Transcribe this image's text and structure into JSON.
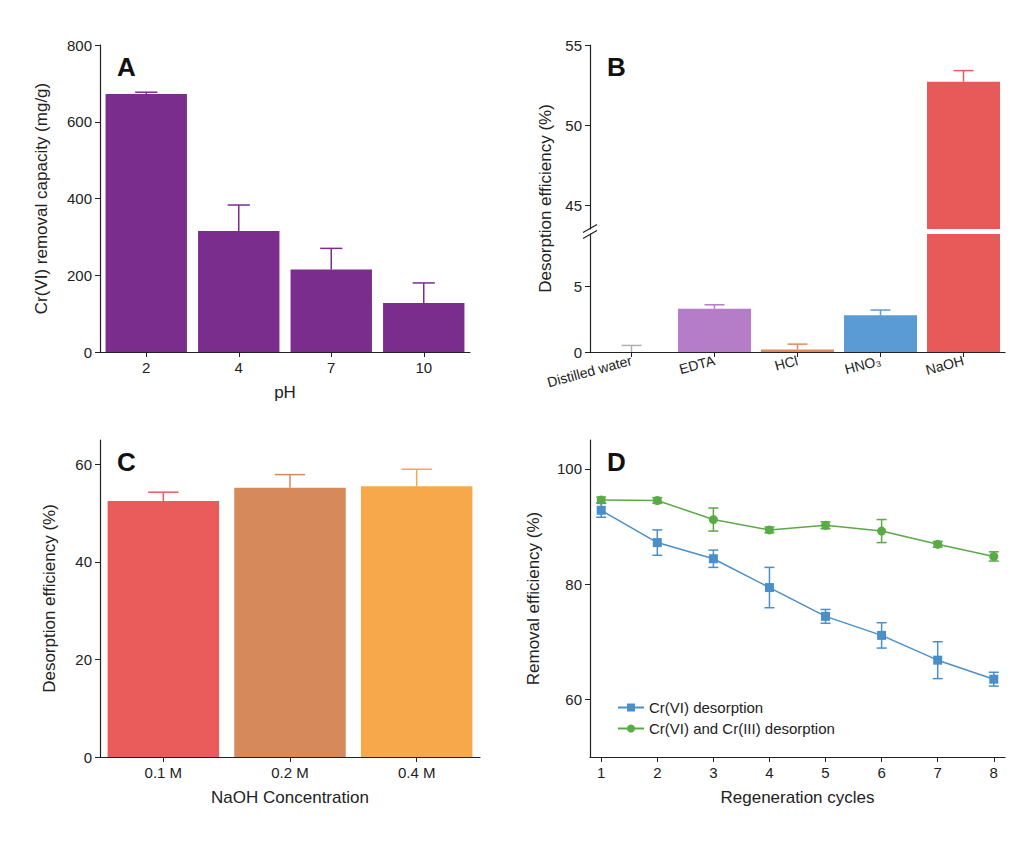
{
  "chart_data": [
    {
      "type": "bar",
      "panel": "A",
      "categories": [
        "2",
        "4",
        "7",
        "10"
      ],
      "values": [
        672,
        315,
        215,
        128
      ],
      "errors": [
        5,
        68,
        55,
        52
      ],
      "color": "#7b2d8e",
      "xlabel": "pH",
      "ylabel": "Cr(VI) removal capacity (mg/g)",
      "ylim": [
        0,
        800
      ],
      "yticks": [
        0,
        200,
        400,
        600,
        800
      ],
      "grid": false
    },
    {
      "type": "bar",
      "panel": "B",
      "categories": [
        "Distilled water",
        "EDTA",
        "HCl",
        "HNO₃",
        "NaOH"
      ],
      "values": [
        0,
        3.3,
        0.2,
        2.8,
        52.7
      ],
      "errors": [
        0.5,
        0.3,
        0.4,
        0.4,
        0.7
      ],
      "colors": [
        "#b0b0b0",
        "#b57cc8",
        "#e08a5c",
        "#5b9bd5",
        "#e85a5a"
      ],
      "ylabel": "Desorption efficiency (%)",
      "ylim": [
        0,
        55
      ],
      "ybreak": [
        9,
        43.5
      ],
      "yticks": [
        0,
        5,
        45,
        50,
        55
      ],
      "grid": false
    },
    {
      "type": "bar",
      "panel": "C",
      "categories": [
        "0.1 M",
        "0.2 M",
        "0.4 M"
      ],
      "values": [
        52.5,
        55.2,
        55.5
      ],
      "errors": [
        1.8,
        2.7,
        3.5
      ],
      "colors": [
        "#ea5b5b",
        "#d6895a",
        "#f7a84a"
      ],
      "xlabel": "NaOH Concentration",
      "ylabel": "Desorption efficiency (%)",
      "ylim": [
        0,
        65
      ],
      "yticks": [
        0,
        20,
        40,
        60
      ],
      "grid": false
    },
    {
      "type": "line",
      "panel": "D",
      "x": [
        1,
        2,
        3,
        4,
        5,
        6,
        7,
        8
      ],
      "series": [
        {
          "name": "Cr(VI) desorption",
          "color": "#4a8fc9",
          "marker": "square",
          "values": [
            92.8,
            87.2,
            84.4,
            79.4,
            74.4,
            71.1,
            66.8,
            63.5
          ],
          "errors": [
            1.2,
            2.2,
            1.5,
            3.5,
            1.2,
            2.2,
            3.2,
            1.2
          ]
        },
        {
          "name": "Cr(VI) and Cr(III) desorption",
          "color": "#5aaa46",
          "marker": "circle",
          "values": [
            94.6,
            94.5,
            91.2,
            89.4,
            90.2,
            89.2,
            86.9,
            84.8
          ],
          "errors": [
            0.5,
            0.5,
            2.0,
            0.5,
            0.6,
            2.0,
            0.5,
            0.8
          ]
        }
      ],
      "xlabel": "Regeneration cycles",
      "ylabel": "Removal efficiency (%)",
      "xlim": [
        0.8,
        8.2
      ],
      "xticks": [
        1,
        2,
        3,
        4,
        5,
        6,
        7,
        8
      ],
      "ylim": [
        50,
        105
      ],
      "yticks": [
        60,
        80,
        100
      ],
      "legend": "lower left",
      "grid": false
    }
  ]
}
